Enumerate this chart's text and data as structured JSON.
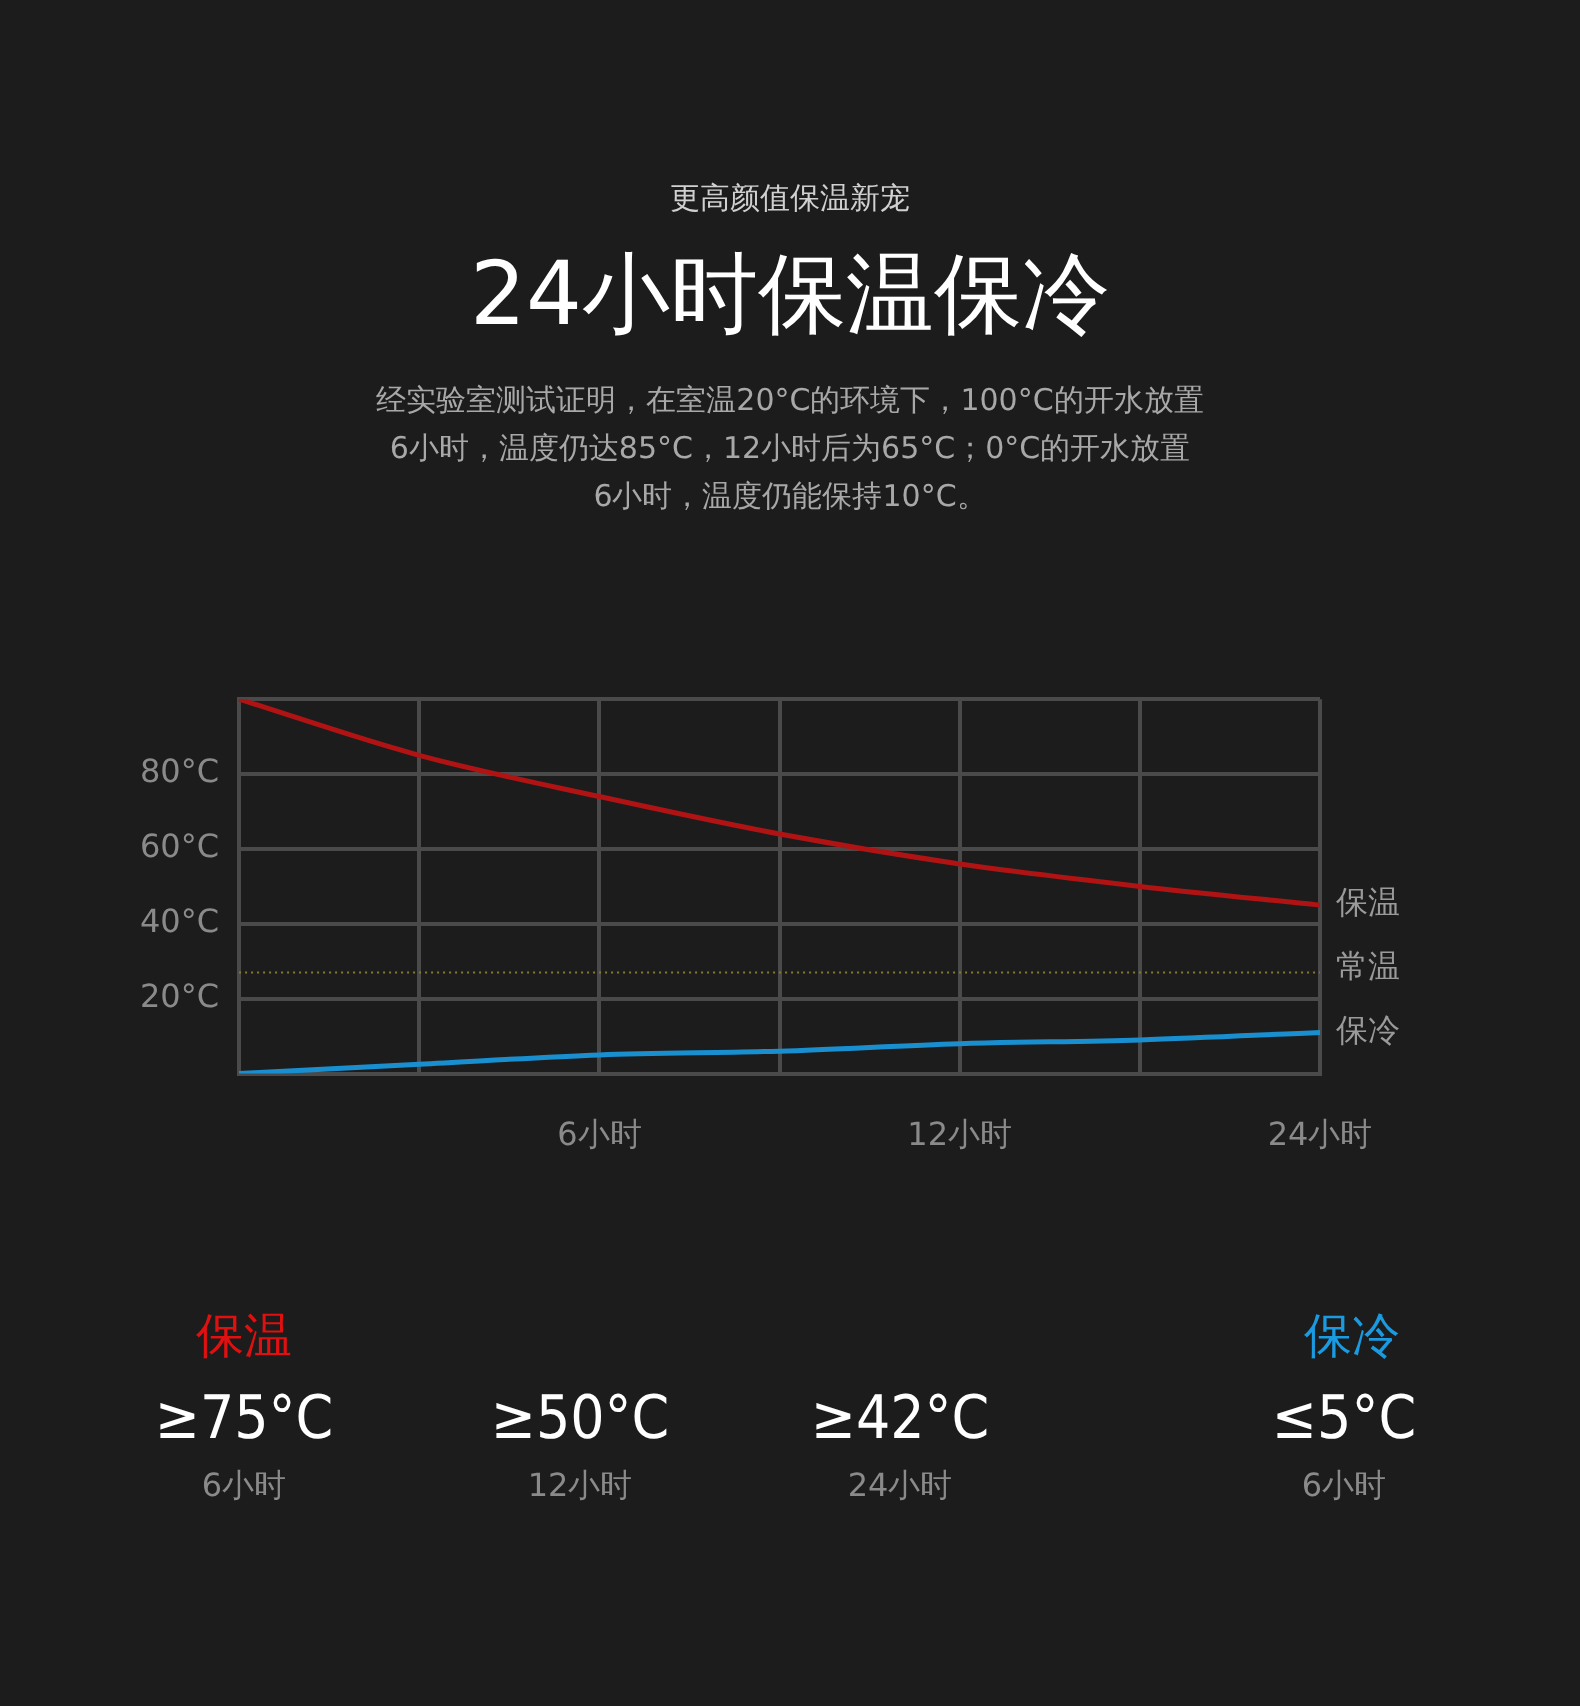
{
  "chart_data": {
    "type": "line",
    "subtitle": "更高颜值保温新宠",
    "title": "24小时保温保冷",
    "categories": [
      null,
      null,
      "6小时",
      null,
      "12小时",
      null,
      "24小时"
    ],
    "series": [
      {
        "name": "保温",
        "color": "#b01313",
        "values": [
          100,
          85,
          74,
          64,
          56,
          50,
          45
        ]
      },
      {
        "name": "保冷",
        "color": "#1a8fd0",
        "values": [
          0,
          2.5,
          5,
          6,
          8,
          9,
          11
        ]
      }
    ],
    "ylim": [
      0,
      100
    ],
    "yticks": [
      {
        "value": 0,
        "label": null
      },
      {
        "value": 20,
        "label": "20°C"
      },
      {
        "value": 40,
        "label": "40°C"
      },
      {
        "value": 60,
        "label": "60°C"
      },
      {
        "value": 80,
        "label": "80°C"
      },
      {
        "value": 100,
        "label": null
      }
    ],
    "ref_lines": [
      {
        "axis": "y",
        "value": 27,
        "label": "常温",
        "color": "#8a7a2a",
        "line_style": "dotted"
      }
    ],
    "grid": true,
    "legend": false,
    "marker": "none",
    "line_style": "solid",
    "annotations": [
      "经实验室测试证明，在室温20°C的环境下，100°C的开水放置\n6小时，温度仍达85°C，12小时后为65°C；0°C的开水放置\n6小时，温度仍能保持10°C。",
      "保温",
      "≥75°C",
      "6小时",
      "≥50°C",
      "12小时",
      "≥42°C",
      "24小时",
      "保冷",
      "≤5°C",
      "6小时"
    ]
  }
}
